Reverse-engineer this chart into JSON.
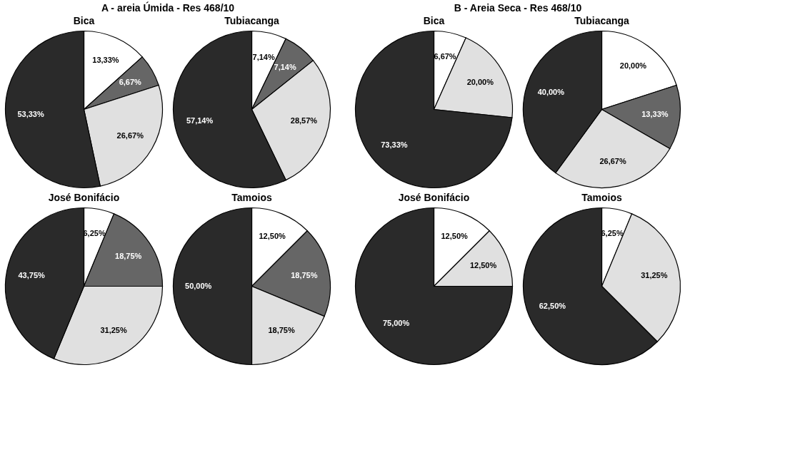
{
  "chart_data": [
    {
      "type": "pie",
      "title": "Bica",
      "annotations": [
        "A - areia Úmida - Res 468/10"
      ],
      "categories": [
        null,
        null,
        null,
        null
      ],
      "values": [
        13.33,
        6.67,
        26.67,
        53.33
      ],
      "colors": [
        "#ffffff",
        "#666666",
        "#e0e0e0",
        "#2a2a2a"
      ],
      "value_labels": [
        "13,33%",
        "6,67%",
        "26,67%",
        "53,33%"
      ],
      "legend": false
    },
    {
      "type": "pie",
      "title": "Tubiacanga",
      "categories": [
        null,
        null,
        null,
        null
      ],
      "values": [
        7.14,
        7.14,
        28.57,
        57.14
      ],
      "colors": [
        "#ffffff",
        "#666666",
        "#e0e0e0",
        "#2a2a2a"
      ],
      "value_labels": [
        "7,14%",
        "7,14%",
        "28,57%",
        "57,14%"
      ],
      "legend": false
    },
    {
      "type": "pie",
      "title": "José Bonifácio",
      "categories": [
        null,
        null,
        null,
        null
      ],
      "values": [
        6.25,
        18.75,
        31.25,
        43.75
      ],
      "colors": [
        "#ffffff",
        "#666666",
        "#e0e0e0",
        "#2a2a2a"
      ],
      "value_labels": [
        "6,25%",
        "18,75%",
        "31,25%",
        "43,75%"
      ],
      "legend": false
    },
    {
      "type": "pie",
      "title": "Tamoios",
      "categories": [
        null,
        null,
        null,
        null
      ],
      "values": [
        12.5,
        18.75,
        18.75,
        50.0
      ],
      "colors": [
        "#ffffff",
        "#666666",
        "#e0e0e0",
        "#2a2a2a"
      ],
      "value_labels": [
        "12,50%",
        "18,75%",
        "18,75%",
        "50,00%"
      ],
      "legend": false
    },
    {
      "type": "pie",
      "title": "Bica",
      "annotations": [
        "B - Areia Seca - Res 468/10"
      ],
      "categories": [
        null,
        null,
        null
      ],
      "values": [
        6.67,
        20.0,
        73.33
      ],
      "colors": [
        "#ffffff",
        "#e0e0e0",
        "#2a2a2a"
      ],
      "value_labels": [
        "6,67%",
        "20,00%",
        "73,33%"
      ],
      "legend": false
    },
    {
      "type": "pie",
      "title": "Tubiacanga",
      "categories": [
        null,
        null,
        null,
        null
      ],
      "values": [
        20.0,
        13.33,
        26.67,
        40.0
      ],
      "colors": [
        "#ffffff",
        "#666666",
        "#e0e0e0",
        "#2a2a2a"
      ],
      "value_labels": [
        "20,00%",
        "13,33%",
        "26,67%",
        "40,00%"
      ],
      "legend": false
    },
    {
      "type": "pie",
      "title": "José Bonifácio",
      "categories": [
        null,
        null,
        null
      ],
      "values": [
        12.5,
        12.5,
        75.0
      ],
      "colors": [
        "#ffffff",
        "#e0e0e0",
        "#2a2a2a"
      ],
      "value_labels": [
        "12,50%",
        "12,50%",
        "75,00%"
      ],
      "legend": false
    },
    {
      "type": "pie",
      "title": "Tamoios",
      "categories": [
        null,
        null,
        null
      ],
      "values": [
        6.25,
        31.25,
        62.5
      ],
      "colors": [
        "#ffffff",
        "#e0e0e0",
        "#2a2a2a"
      ],
      "value_labels": [
        "6,25%",
        "31,25%",
        "62,50%"
      ],
      "legend": false
    }
  ]
}
